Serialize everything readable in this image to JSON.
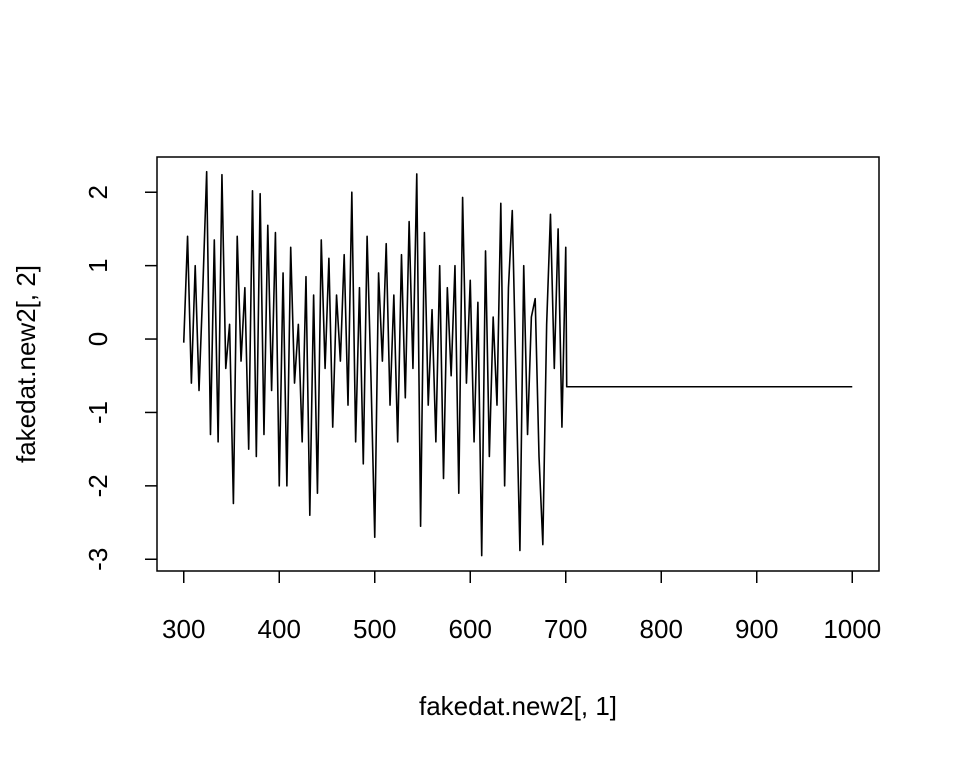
{
  "chart_data": {
    "type": "line",
    "xlabel": "fakedat.new2[, 1]",
    "ylabel": "fakedat.new2[, 2]",
    "xlim": [
      272,
      1028
    ],
    "ylim": [
      -3.16,
      2.48
    ],
    "xticks": [
      300,
      400,
      500,
      600,
      700,
      800,
      900,
      1000
    ],
    "yticks": [
      -3,
      -2,
      -1,
      0,
      1,
      2
    ],
    "color": "#000000",
    "x": [
      300,
      304,
      308,
      312,
      316,
      320,
      324,
      328,
      332,
      336,
      340,
      344,
      348,
      352,
      356,
      360,
      364,
      368,
      372,
      376,
      380,
      384,
      388,
      392,
      396,
      400,
      404,
      408,
      412,
      416,
      420,
      424,
      428,
      432,
      436,
      440,
      444,
      448,
      452,
      456,
      460,
      464,
      468,
      472,
      476,
      480,
      484,
      488,
      492,
      496,
      500,
      504,
      508,
      512,
      516,
      520,
      524,
      528,
      532,
      536,
      540,
      544,
      548,
      552,
      556,
      560,
      564,
      568,
      572,
      576,
      580,
      584,
      588,
      592,
      596,
      600,
      604,
      608,
      612,
      616,
      620,
      624,
      628,
      632,
      636,
      640,
      644,
      648,
      652,
      656,
      660,
      664,
      668,
      672,
      676,
      680,
      684,
      688,
      692,
      696,
      700,
      701,
      1000
    ],
    "values": [
      -0.05,
      1.4,
      -0.6,
      1.0,
      -0.7,
      0.7,
      2.28,
      -1.3,
      1.35,
      -1.4,
      2.24,
      -0.4,
      0.2,
      -2.24,
      1.4,
      -0.3,
      0.7,
      -1.5,
      2.02,
      -1.6,
      1.98,
      -1.3,
      1.55,
      -0.7,
      1.45,
      -2.0,
      0.9,
      -2.0,
      1.25,
      -0.6,
      0.2,
      -1.4,
      0.85,
      -2.4,
      0.6,
      -2.1,
      1.35,
      -0.4,
      1.1,
      -1.2,
      0.6,
      -0.3,
      1.15,
      -0.9,
      2.0,
      -1.4,
      0.7,
      -1.7,
      1.4,
      -0.5,
      -2.7,
      0.9,
      -0.3,
      1.3,
      -0.9,
      0.6,
      -1.4,
      1.15,
      -0.8,
      1.6,
      -0.4,
      2.25,
      -2.55,
      1.45,
      -0.9,
      0.4,
      -1.4,
      1.0,
      -1.9,
      0.7,
      -0.5,
      1.0,
      -2.1,
      1.93,
      -0.6,
      0.8,
      -1.4,
      0.5,
      -2.95,
      1.2,
      -1.6,
      0.3,
      -0.9,
      1.85,
      -2.0,
      0.7,
      1.75,
      -0.6,
      -2.88,
      1.0,
      -1.3,
      0.3,
      0.55,
      -1.6,
      -2.8,
      0.2,
      1.7,
      -0.4,
      1.5,
      -1.2,
      1.25,
      -0.65,
      -0.65
    ]
  }
}
